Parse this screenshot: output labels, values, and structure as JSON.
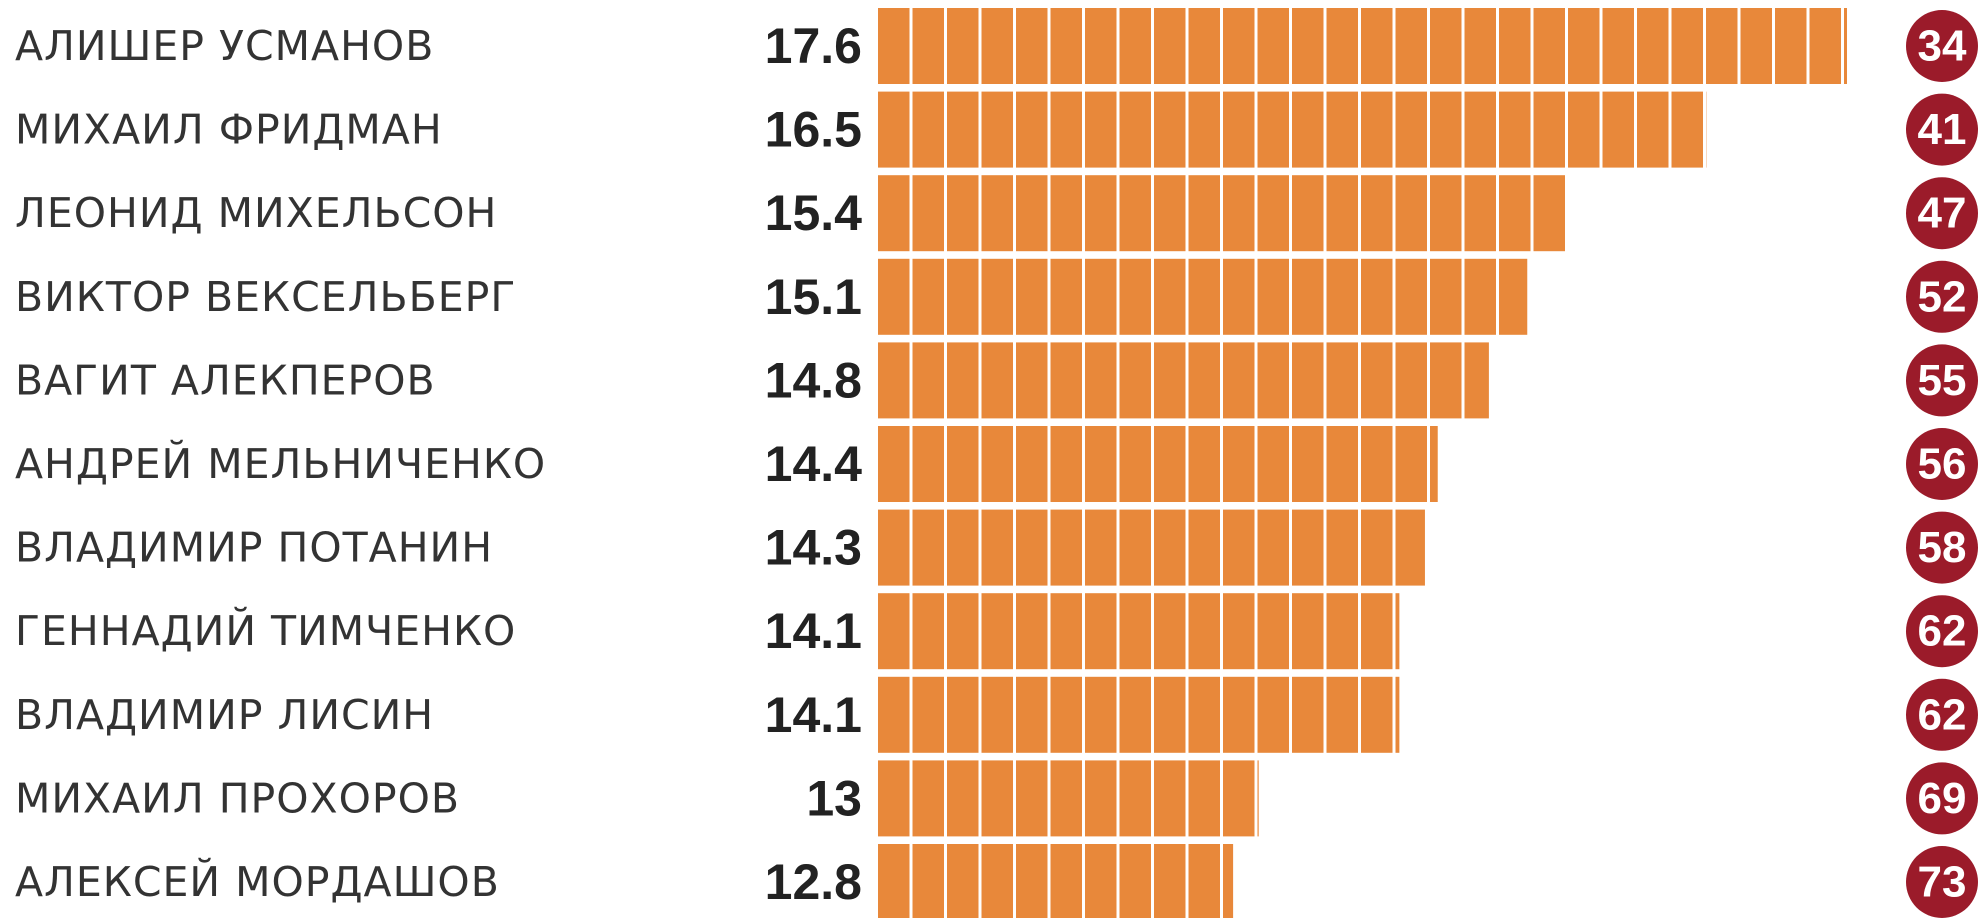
{
  "chart_data": {
    "type": "bar",
    "orientation": "horizontal",
    "categories": [
      "АЛИШЕР УСМАНОВ",
      "МИХАИЛ ФРИДМАН",
      "ЛЕОНИД МИХЕЛЬСОН",
      "ВИКТОР ВЕКСЕЛЬБЕРГ",
      "ВАГИТ АЛЕКПЕРОВ",
      "АНДРЕЙ МЕЛЬНИЧЕНКО",
      "ВЛАДИМИР ПОТАНИН",
      "ГЕННАДИЙ ТИМЧЕНКО",
      "ВЛАДИМИР ЛИСИН",
      "МИХАИЛ ПРОХОРОВ",
      "АЛЕКСЕЙ МОРДАШОВ"
    ],
    "values": [
      17.6,
      16.5,
      15.4,
      15.1,
      14.8,
      14.4,
      14.3,
      14.1,
      14.1,
      13,
      12.8
    ],
    "ranks": [
      34,
      41,
      47,
      52,
      55,
      56,
      58,
      62,
      62,
      69,
      73
    ],
    "color": "#e8883a",
    "rank_color": "#9b1b2a",
    "xlim": [
      10,
      17.6
    ]
  }
}
